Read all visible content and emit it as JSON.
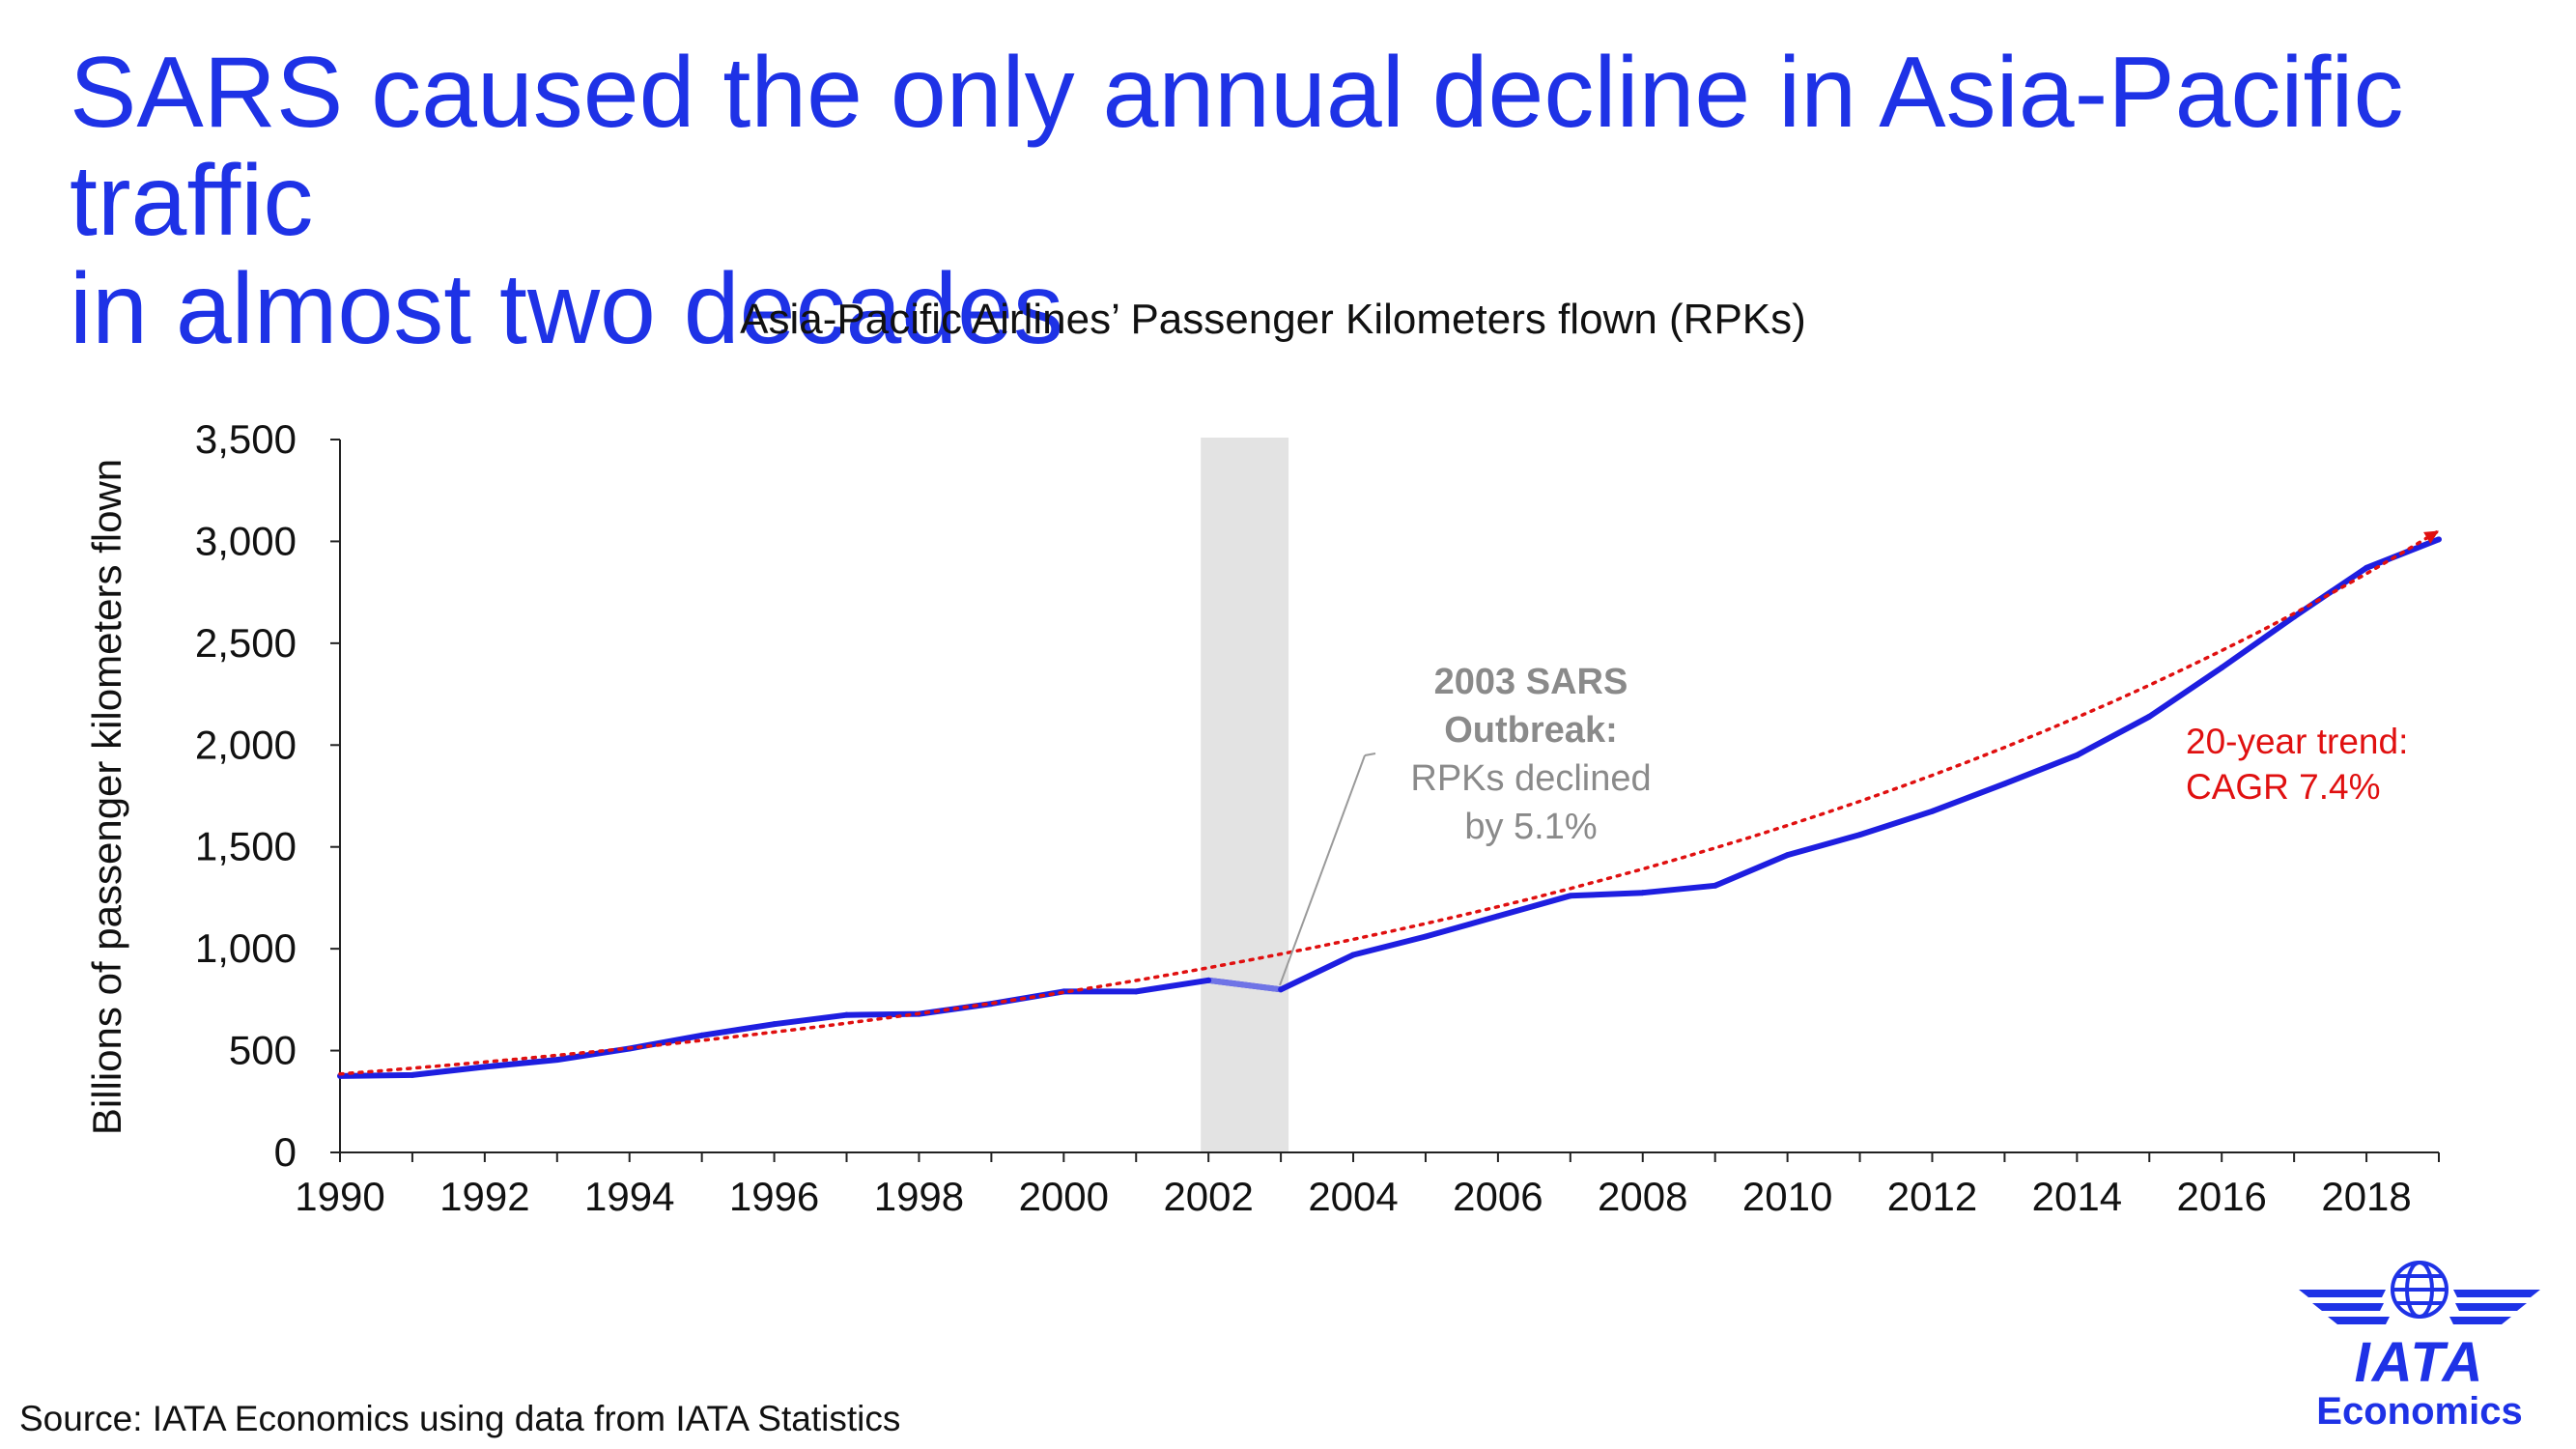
{
  "headline": {
    "line1": "SARS caused the only annual decline in Asia-Pacific traffic",
    "line2": "in almost two decades"
  },
  "chart_data": {
    "type": "line",
    "title": "Asia-Pacific Airlines’ Passenger Kilometers flown (RPKs)",
    "xlabel": "",
    "ylabel": "Billions of passenger kilometers flown",
    "xlim": [
      1990,
      2019
    ],
    "ylim": [
      0,
      3500
    ],
    "yticks": [
      0,
      500,
      1000,
      1500,
      2000,
      2500,
      3000,
      3500
    ],
    "ytick_labels": [
      "0",
      "500",
      "1,000",
      "1,500",
      "2,000",
      "2,500",
      "3,000",
      "3,500"
    ],
    "xticks": [
      1990,
      1992,
      1994,
      1996,
      1998,
      2000,
      2002,
      2004,
      2006,
      2008,
      2010,
      2012,
      2014,
      2016,
      2018
    ],
    "xtick_labels": [
      "1990",
      "1992",
      "1994",
      "1996",
      "1998",
      "2000",
      "2002",
      "2004",
      "2006",
      "2008",
      "2010",
      "2012",
      "2014",
      "2016",
      "2018"
    ],
    "grid": false,
    "x": [
      1990,
      1991,
      1992,
      1993,
      1994,
      1995,
      1996,
      1997,
      1998,
      1999,
      2000,
      2001,
      2002,
      2003,
      2004,
      2005,
      2006,
      2007,
      2008,
      2009,
      2010,
      2011,
      2012,
      2013,
      2014,
      2015,
      2016,
      2017,
      2018,
      2019
    ],
    "series": [
      {
        "name": "RPKs",
        "color": "#1e1ee0",
        "values": [
          375,
          380,
          420,
          455,
          510,
          575,
          630,
          675,
          680,
          730,
          790,
          790,
          845,
          800,
          970,
          1060,
          1160,
          1260,
          1275,
          1310,
          1460,
          1560,
          1675,
          1810,
          1950,
          2140,
          2380,
          2630,
          2870,
          3010
        ]
      },
      {
        "name": "20-year trend",
        "style": "dotted",
        "color": "#e01010",
        "start_value": 385,
        "cagr": 0.074
      }
    ],
    "highlight": {
      "x_range": [
        2002,
        2003
      ],
      "color": "#e3e3e3"
    },
    "annotations": {
      "sars_title_line1": "2003 SARS",
      "sars_title_line2": "Outbreak:",
      "sars_text_line1": "RPKs declined",
      "sars_text_line2": "by 5.1%",
      "trend_line1": "20-year trend:",
      "trend_line2": "CAGR 7.4%"
    }
  },
  "source": "Source: IATA Economics using data from IATA Statistics",
  "logo": {
    "word1": "IATA",
    "word2": "Economics",
    "color": "#1e32e6"
  }
}
